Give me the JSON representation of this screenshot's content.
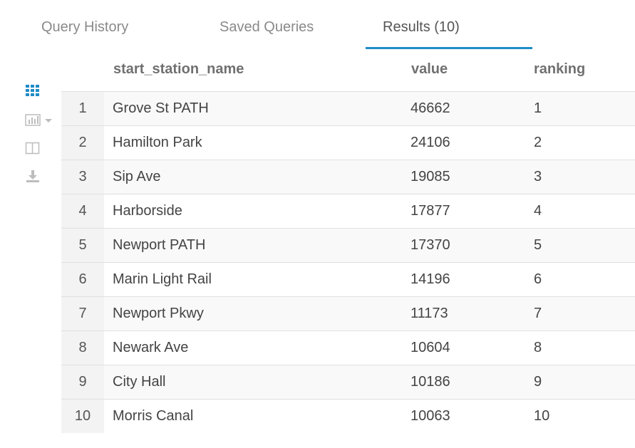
{
  "tabs": [
    {
      "label": "Query History",
      "active": false
    },
    {
      "label": "Saved Queries",
      "active": false
    },
    {
      "label": "Results (10)",
      "active": true
    }
  ],
  "toolbar": {
    "grid_icon": "grid-icon",
    "chart_icon": "bar-chart-icon",
    "columns_icon": "columns-icon",
    "download_icon": "download-icon",
    "accent_color": "#1f8bc7"
  },
  "table": {
    "columns": [
      "start_station_name",
      "value",
      "ranking"
    ],
    "rows": [
      {
        "index": "1",
        "start_station_name": "Grove St PATH",
        "value": "46662",
        "ranking": "1"
      },
      {
        "index": "2",
        "start_station_name": "Hamilton Park",
        "value": "24106",
        "ranking": "2"
      },
      {
        "index": "3",
        "start_station_name": "Sip Ave",
        "value": "19085",
        "ranking": "3"
      },
      {
        "index": "4",
        "start_station_name": "Harborside",
        "value": "17877",
        "ranking": "4"
      },
      {
        "index": "5",
        "start_station_name": "Newport PATH",
        "value": "17370",
        "ranking": "5"
      },
      {
        "index": "6",
        "start_station_name": "Marin Light Rail",
        "value": "14196",
        "ranking": "6"
      },
      {
        "index": "7",
        "start_station_name": "Newport Pkwy",
        "value": "11173",
        "ranking": "7"
      },
      {
        "index": "8",
        "start_station_name": "Newark Ave",
        "value": "10604",
        "ranking": "8"
      },
      {
        "index": "9",
        "start_station_name": "City Hall",
        "value": "10186",
        "ranking": "9"
      },
      {
        "index": "10",
        "start_station_name": "Morris Canal",
        "value": "10063",
        "ranking": "10"
      }
    ]
  }
}
